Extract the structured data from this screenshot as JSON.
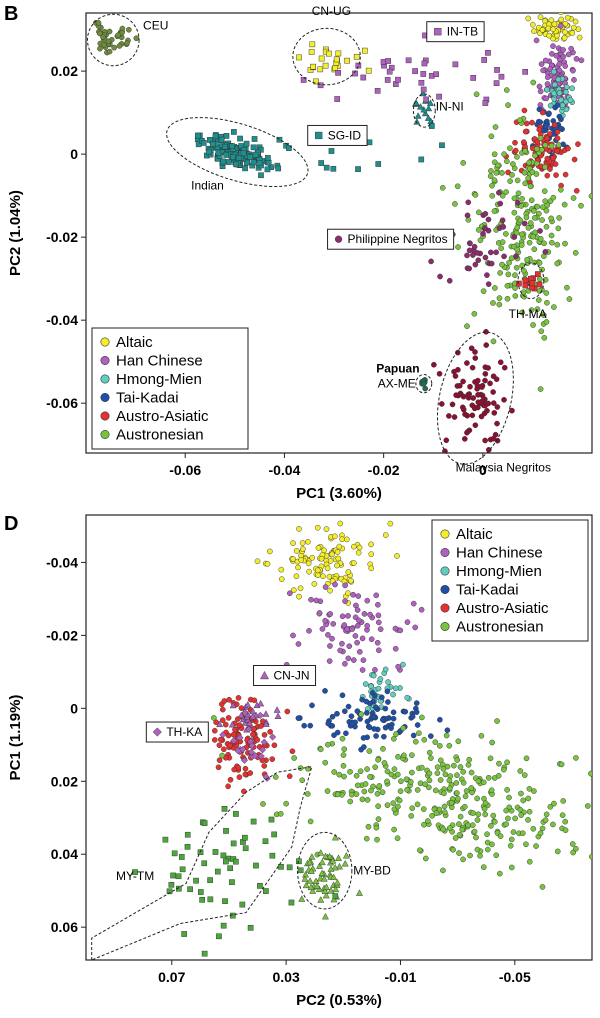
{
  "colors": {
    "Altaic": "#f4ee2a",
    "Han Chinese": "#b060c0",
    "Hmong-Mien": "#5fcfc0",
    "Tai-Kadai": "#1f4fa8",
    "Austro-Asiatic": "#e83030",
    "Austronesian": "#78c43e",
    "CEU": "#6e8c3c",
    "Indian": "#1d8f8f",
    "IN-NI": "#1d8f8f",
    "SG-ID": "#1d8f8f",
    "CN-UG": "#f4ee2a",
    "IN-TB": "#b060c0",
    "Philippine Negritos": "#8c2c6c",
    "TH-MA": "#e83030",
    "Malaysia Negritos": "#8c1030",
    "AX-ME": "#1f6e4e",
    "CN-JN": "#b060c0",
    "TH-KA": "#b060c0",
    "MY-TM": "#4aa83a",
    "MY-BD": "#78c43e"
  },
  "chart_data": [
    {
      "panel_label": "B",
      "type": "scatter",
      "title": "",
      "xlabel": "PC1 (3.60%)",
      "ylabel": "PC2 (1.04%)",
      "xlim": [
        -0.08,
        0.022
      ],
      "ylim": [
        -0.072,
        0.034
      ],
      "xticks": [
        -0.06,
        -0.04,
        -0.02,
        0
      ],
      "xtick_labels": [
        "-0.06",
        "-0.04",
        "-0.02",
        "0"
      ],
      "yticks": [
        0.02,
        0,
        -0.02,
        -0.04,
        -0.06
      ],
      "ytick_labels": [
        "0.02",
        "0",
        "-0.02",
        "-0.04",
        "-0.06"
      ],
      "legend_position": "bottom-left",
      "legend": [
        "Altaic",
        "Han Chinese",
        "Hmong-Mien",
        "Tai-Kadai",
        "Austro-Asiatic",
        "Austronesian"
      ],
      "series": [
        {
          "name": "CEU",
          "marker": "circle",
          "n": 40,
          "center": [
            -0.0745,
            0.028
          ],
          "spread": [
            0.0023,
            0.0016
          ],
          "seed": 11
        },
        {
          "name": "Indian",
          "marker": "square",
          "n": 130,
          "center": [
            -0.0495,
            0.0005
          ],
          "spread": [
            0.0025,
            0.0012
          ],
          "along": [
            0.0085,
            -0.006
          ],
          "seed": 12
        },
        {
          "name": "CN-UG",
          "marker": "square",
          "n": 24,
          "center": [
            -0.032,
            0.0225
          ],
          "spread": [
            0.0035,
            0.0018
          ],
          "seed": 13
        },
        {
          "name": "IN-NI",
          "marker": "triangle",
          "n": 15,
          "center": [
            -0.0118,
            0.0105
          ],
          "spread": [
            0.0011,
            0.0018
          ],
          "seed": 14
        },
        {
          "name": "IN-TB",
          "marker": "square",
          "n": 38,
          "center": [
            -0.014,
            0.019
          ],
          "spread": [
            0.011,
            0.0045
          ],
          "seed": 15
        },
        {
          "name": "SG-ID",
          "marker": "square",
          "n": 14,
          "center": [
            -0.027,
            0.0005
          ],
          "spread": [
            0.01,
            0.005
          ],
          "seed": 16
        },
        {
          "name": "Altaic",
          "marker": "circle",
          "n": 60,
          "center": [
            0.0145,
            0.0305
          ],
          "spread": [
            0.0022,
            0.0018
          ],
          "seed": 17
        },
        {
          "name": "Han Chinese",
          "marker": "circle",
          "n": 90,
          "center": [
            0.015,
            0.018
          ],
          "spread": [
            0.0018,
            0.0045
          ],
          "seed": 18
        },
        {
          "name": "Hmong-Mien",
          "marker": "circle",
          "n": 35,
          "center": [
            0.0155,
            0.0145
          ],
          "spread": [
            0.0012,
            0.0025
          ],
          "seed": 19
        },
        {
          "name": "Tai-Kadai",
          "marker": "circle",
          "n": 40,
          "center": [
            0.0135,
            0.0065
          ],
          "spread": [
            0.0015,
            0.003
          ],
          "seed": 20
        },
        {
          "name": "Austro-Asiatic",
          "marker": "circle",
          "n": 95,
          "center": [
            0.0115,
            0.0005
          ],
          "spread": [
            0.003,
            0.0038
          ],
          "seed": 21
        },
        {
          "name": "Austronesian",
          "marker": "circle",
          "n": 230,
          "center": [
            0.0075,
            -0.0165
          ],
          "spread": [
            0.005,
            0.012
          ],
          "seed": 22
        },
        {
          "name": "Philippine Negritos",
          "marker": "circle",
          "n": 45,
          "center": [
            0.0,
            -0.0215
          ],
          "spread": [
            0.004,
            0.004
          ],
          "along": [
            0.007,
            0.01
          ],
          "seed": 23
        },
        {
          "name": "TH-MA",
          "marker": "square",
          "n": 13,
          "center": [
            0.0095,
            -0.0305
          ],
          "spread": [
            0.0011,
            0.0012
          ],
          "seed": 24
        },
        {
          "name": "Malaysia Negritos",
          "marker": "circle",
          "n": 90,
          "center": [
            -0.0015,
            -0.0595
          ],
          "spread": [
            0.0032,
            0.0065
          ],
          "seed": 25
        },
        {
          "name": "AX-ME",
          "marker": "circle",
          "n": 8,
          "center": [
            -0.0119,
            -0.0553
          ],
          "spread": [
            0.0006,
            0.0006
          ],
          "seed": 26
        }
      ],
      "ellipses": [
        {
          "name": "CEU",
          "cx": -0.0745,
          "cy": 0.0275,
          "rx": 0.0052,
          "ry": 0.0062
        },
        {
          "name": "CN-UG",
          "cx": -0.0315,
          "cy": 0.0235,
          "rx": 0.0068,
          "ry": 0.0068
        },
        {
          "name": "Indian",
          "cx": -0.0495,
          "cy": 0.0005,
          "rx": 0.0148,
          "ry": 0.0068,
          "rot": 17
        },
        {
          "name": "IN-NI",
          "cx": -0.0118,
          "cy": 0.0105,
          "rx": 0.0022,
          "ry": 0.004
        },
        {
          "name": "TH-MA",
          "cx": 0.0097,
          "cy": -0.0305,
          "rx": 0.0026,
          "ry": 0.0043
        },
        {
          "name": "AX-ME",
          "cx": -0.0119,
          "cy": -0.0553,
          "rx": 0.0016,
          "ry": 0.0022
        },
        {
          "name": "Malaysia Negritos",
          "cx": -0.0015,
          "cy": -0.0588,
          "rx": 0.0072,
          "ry": 0.0162,
          "rot": 13
        }
      ],
      "annotations": [
        {
          "text": "CEU",
          "x": -0.0685,
          "y": 0.03,
          "boxed": false
        },
        {
          "text": "CN-UG",
          "x": -0.0345,
          "y": 0.0335,
          "boxed": false
        },
        {
          "text": "IN-TB",
          "x": -0.0105,
          "y": 0.0295,
          "boxed": true,
          "marker": "square",
          "series": "IN-TB"
        },
        {
          "text": "IN-NI",
          "x": -0.0095,
          "y": 0.0105,
          "boxed": false
        },
        {
          "text": "SG-ID",
          "x": -0.0345,
          "y": 0.0045,
          "boxed": true,
          "marker": "square",
          "series": "SG-ID"
        },
        {
          "text": "Indian",
          "x": -0.0588,
          "y": -0.0085,
          "boxed": false
        },
        {
          "text": "Philippine Negritos",
          "x": -0.0305,
          "y": -0.0205,
          "boxed": true,
          "marker": "circle",
          "series": "Philippine Negritos"
        },
        {
          "text": "TH-MA",
          "x": 0.0052,
          "y": -0.0395,
          "boxed": false
        },
        {
          "text": "Papuan",
          "x": -0.0215,
          "y": -0.0526,
          "boxed": false,
          "bold": true
        },
        {
          "text": "AX-ME",
          "x": -0.0212,
          "y": -0.0562,
          "boxed": false
        },
        {
          "text": "Malaysia Negritos",
          "x": -0.0055,
          "y": -0.0765,
          "boxed": false
        }
      ]
    },
    {
      "panel_label": "D",
      "type": "scatter",
      "title": "",
      "xlabel": "PC2 (0.53%)",
      "ylabel": "PC1 (1.19%)",
      "xlim": [
        0.1,
        -0.077
      ],
      "ylim": [
        0.069,
        -0.053
      ],
      "xticks": [
        0.07,
        0.03,
        -0.01,
        -0.05
      ],
      "xtick_labels": [
        "0.07",
        "0.03",
        "-0.01",
        "-0.05"
      ],
      "yticks": [
        -0.04,
        -0.02,
        0,
        0.02,
        0.04,
        0.06
      ],
      "ytick_labels": [
        "-0.04",
        "-0.02",
        "0",
        "0.02",
        "0.04",
        "0.06"
      ],
      "legend_position": "top-right",
      "legend": [
        "Altaic",
        "Han Chinese",
        "Hmong-Mien",
        "Tai-Kadai",
        "Austro-Asiatic",
        "Austronesian"
      ],
      "series": [
        {
          "name": "Altaic",
          "marker": "circle",
          "n": 110,
          "center": [
            0.0155,
            -0.04
          ],
          "spread": [
            0.0085,
            0.0045
          ],
          "seed": 31
        },
        {
          "name": "Han Chinese",
          "marker": "circle",
          "n": 80,
          "center": [
            0.0075,
            -0.023
          ],
          "spread": [
            0.009,
            0.0065
          ],
          "along": [
            -0.013,
            0.007
          ],
          "seed": 32
        },
        {
          "name": "Hmong-Mien",
          "marker": "circle",
          "n": 35,
          "center": [
            -0.003,
            -0.005
          ],
          "spread": [
            0.0045,
            0.003
          ],
          "seed": 33
        },
        {
          "name": "Tai-Kadai",
          "marker": "circle",
          "n": 85,
          "center": [
            0.0,
            0.0035
          ],
          "spread": [
            0.011,
            0.0035
          ],
          "along": [
            -0.009,
            -0.003
          ],
          "seed": 34
        },
        {
          "name": "Austro-Asiatic",
          "marker": "circle",
          "n": 110,
          "center": [
            0.045,
            0.0085
          ],
          "spread": [
            0.0055,
            0.0055
          ],
          "seed": 35
        },
        {
          "name": "CN-JN",
          "marker": "triangle",
          "n": 26,
          "center": [
            0.043,
            0.001
          ],
          "spread": [
            0.005,
            0.002
          ],
          "seed": 36
        },
        {
          "name": "TH-KA",
          "marker": "diamond",
          "n": 22,
          "center": [
            0.042,
            0.012
          ],
          "spread": [
            0.0035,
            0.004
          ],
          "seed": 37
        },
        {
          "name": "Austronesian",
          "marker": "circle",
          "n": 330,
          "center": [
            -0.027,
            0.0245
          ],
          "spread": [
            0.022,
            0.006
          ],
          "along": [
            0.045,
            -0.022
          ],
          "seed": 38
        },
        {
          "name": "MY-BD",
          "marker": "triangle",
          "n": 55,
          "center": [
            0.0165,
            0.045
          ],
          "spread": [
            0.0045,
            0.004
          ],
          "seed": 39
        },
        {
          "name": "MY-TM",
          "marker": "square",
          "n": 60,
          "center": [
            0.05,
            0.043
          ],
          "spread": [
            0.011,
            0.008
          ],
          "along": [
            0.021,
            0.012
          ],
          "seed": 40
        }
      ],
      "ellipses": [
        {
          "name": "MY-BD",
          "cx": 0.0165,
          "cy": 0.0445,
          "rx": 0.0095,
          "ry": 0.0105
        }
      ],
      "polygons": [
        {
          "name": "MY-TM",
          "points": [
            [
              0.098,
              0.069
            ],
            [
              0.098,
              0.063
            ],
            [
              0.065,
              0.048
            ],
            [
              0.057,
              0.034
            ],
            [
              0.044,
              0.023
            ],
            [
              0.033,
              0.0175
            ],
            [
              0.021,
              0.016
            ],
            [
              0.025,
              0.027
            ],
            [
              0.028,
              0.038
            ],
            [
              0.044,
              0.056
            ],
            [
              0.067,
              0.059
            ]
          ]
        }
      ],
      "annotations": [
        {
          "text": "CN-JN",
          "x": 0.04,
          "y": -0.009,
          "boxed": true,
          "marker": "triangle",
          "series": "CN-JN"
        },
        {
          "text": "TH-KA",
          "x": 0.0775,
          "y": 0.0065,
          "boxed": true,
          "marker": "diamond",
          "series": "TH-KA"
        },
        {
          "text": "MY-TM",
          "x": 0.0895,
          "y": 0.047,
          "boxed": false
        },
        {
          "text": "MY-BD",
          "x": 0.0065,
          "y": 0.0455,
          "boxed": false
        }
      ]
    }
  ]
}
